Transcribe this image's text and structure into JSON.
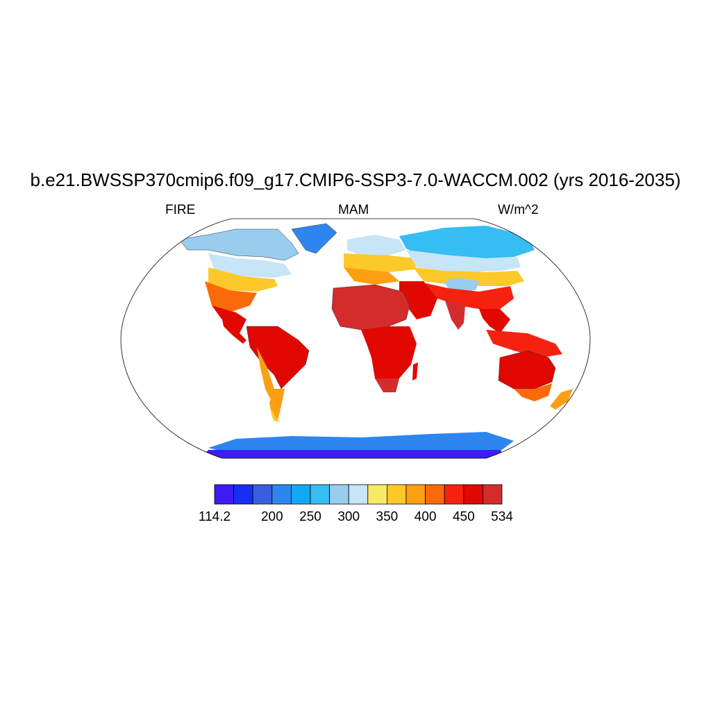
{
  "title": "b.e21.BWSSP370cmip6.f09_g17.CMIP6-SSP3-7.0-WACCM.002 (yrs 2016-2035)",
  "left_label": "FIRE",
  "center_label": "MAM",
  "right_label": "W/m^2",
  "colorbar": {
    "colors": [
      "#3d1cf5",
      "#1530f2",
      "#3a5ee0",
      "#2d86f0",
      "#12a8f5",
      "#36bdf2",
      "#98cdee",
      "#c6e5f7",
      "#fae967",
      "#fdc82a",
      "#fc9f12",
      "#fb6a0a",
      "#f52210",
      "#e00800",
      "#d42b2d"
    ],
    "tick_labels": [
      "114.2",
      "200",
      "250",
      "300",
      "350",
      "400",
      "450",
      "534"
    ]
  }
}
